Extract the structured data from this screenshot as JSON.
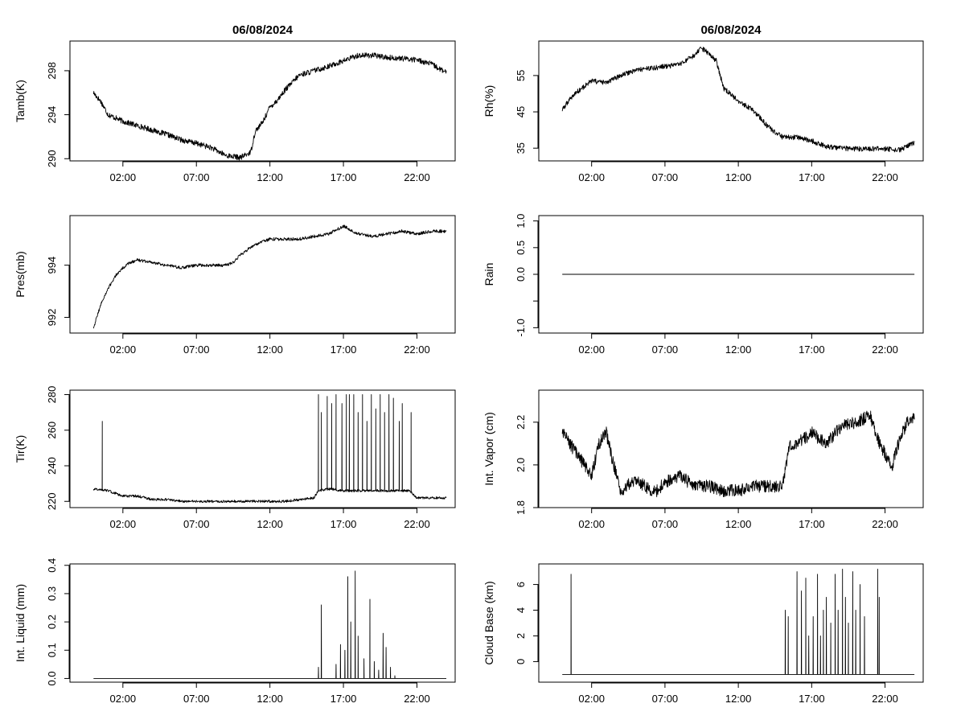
{
  "chart_data": [
    {
      "type": "line",
      "title": "06/08/2024",
      "ylabel": "Tamb(K)",
      "xlabel": "",
      "xlim": [
        -1.6,
        24.6
      ],
      "ylim": [
        289.8,
        300.7
      ],
      "xticks": [
        2,
        7,
        12,
        17,
        22
      ],
      "xtick_labels": [
        "02:00",
        "07:00",
        "12:00",
        "17:00",
        "22:00"
      ],
      "yticks": [
        290,
        294,
        298
      ],
      "ytick_labels": [
        "290",
        "294",
        "298"
      ],
      "noise": 0.25,
      "spikes": [],
      "series": [
        {
          "name": "Tamb",
          "x": [
            0,
            0.5,
            1,
            2,
            3,
            4,
            5,
            6,
            7,
            8,
            9,
            10,
            10.7,
            11,
            11.5,
            12,
            12.5,
            13,
            14,
            15,
            16,
            17,
            18,
            19,
            20,
            21,
            22,
            23,
            24
          ],
          "y": [
            296,
            295.2,
            294,
            293.4,
            293,
            292.6,
            292.2,
            291.7,
            291.4,
            291,
            290.3,
            290.1,
            290.6,
            292.5,
            293.3,
            294.7,
            295.3,
            296.2,
            297.6,
            298,
            298.4,
            298.9,
            299.4,
            299.4,
            299.2,
            299.1,
            299,
            298.6,
            297.8
          ]
        }
      ]
    },
    {
      "type": "line",
      "title": "06/08/2024",
      "ylabel": "Rh(%)",
      "xlabel": "",
      "xlim": [
        -1.6,
        24.6
      ],
      "ylim": [
        31.5,
        64.5
      ],
      "xticks": [
        2,
        7,
        12,
        17,
        22
      ],
      "xtick_labels": [
        "02:00",
        "07:00",
        "12:00",
        "17:00",
        "22:00"
      ],
      "yticks": [
        35,
        45,
        55
      ],
      "ytick_labels": [
        "35",
        "45",
        "55"
      ],
      "noise": 0.7,
      "spikes": [],
      "series": [
        {
          "name": "Rh",
          "x": [
            0,
            0.5,
            1,
            2,
            3,
            4,
            5,
            6,
            7,
            8,
            9,
            9.5,
            10,
            10.5,
            11,
            12,
            13,
            14,
            15,
            16,
            17,
            18,
            19,
            20,
            21,
            22,
            23,
            24
          ],
          "y": [
            45.5,
            48.5,
            50.5,
            53.5,
            53,
            55,
            56.5,
            57,
            57.5,
            58,
            60.5,
            62.5,
            61,
            59,
            51.5,
            48,
            45.5,
            41,
            38,
            38,
            37,
            35.5,
            35,
            34.8,
            34.8,
            34.8,
            34.5,
            36.5
          ]
        }
      ]
    },
    {
      "type": "line",
      "title": "",
      "ylabel": "Pres(mb)",
      "xlabel": "",
      "xlim": [
        -1.6,
        24.6
      ],
      "ylim": [
        991.4,
        995.9
      ],
      "xticks": [
        2,
        7,
        12,
        17,
        22
      ],
      "xtick_labels": [
        "02:00",
        "07:00",
        "12:00",
        "17:00",
        "22:00"
      ],
      "yticks": [
        992,
        994
      ],
      "ytick_labels": [
        "992",
        "994"
      ],
      "noise": 0.06,
      "spikes": [],
      "series": [
        {
          "name": "Pres",
          "x": [
            0,
            0.5,
            1,
            1.5,
            2,
            2.5,
            3,
            4,
            5,
            6,
            7,
            8,
            9,
            9.5,
            10,
            11,
            12,
            13,
            14,
            15,
            16,
            17,
            18,
            19,
            20,
            21,
            22,
            23,
            24
          ],
          "y": [
            991.6,
            992.5,
            993.1,
            993.6,
            993.9,
            994.1,
            994.2,
            994.1,
            994,
            993.9,
            994,
            994,
            994,
            994.1,
            994.4,
            994.8,
            995,
            995,
            995,
            995.1,
            995.2,
            995.5,
            995.2,
            995.1,
            995.2,
            995.3,
            995.2,
            995.3,
            995.3
          ]
        }
      ]
    },
    {
      "type": "line",
      "title": "",
      "ylabel": "Rain",
      "xlabel": "",
      "xlim": [
        -1.6,
        24.6
      ],
      "ylim": [
        -1.1,
        1.1
      ],
      "xticks": [
        2,
        7,
        12,
        17,
        22
      ],
      "xtick_labels": [
        "02:00",
        "07:00",
        "12:00",
        "17:00",
        "22:00"
      ],
      "yticks": [
        -1.0,
        -0.5,
        0.0,
        0.5,
        1.0
      ],
      "ytick_labels": [
        "-1.0",
        "",
        "0.0",
        "0.5",
        "1.0"
      ],
      "noise": 0,
      "spikes": [],
      "series": [
        {
          "name": "Rain",
          "x": [
            0,
            24
          ],
          "y": [
            0,
            0
          ]
        }
      ]
    },
    {
      "type": "line",
      "title": "",
      "ylabel": "Tir(K)",
      "xlabel": "",
      "xlim": [
        -1.6,
        24.6
      ],
      "ylim": [
        216.5,
        282.5
      ],
      "xticks": [
        2,
        7,
        12,
        17,
        22
      ],
      "xtick_labels": [
        "02:00",
        "07:00",
        "12:00",
        "17:00",
        "22:00"
      ],
      "yticks": [
        220,
        240,
        260,
        280
      ],
      "ytick_labels": [
        "220",
        "240",
        "260",
        "280"
      ],
      "noise": 0.7,
      "spikes": [
        [
          0.6,
          265
        ],
        [
          15.3,
          280
        ],
        [
          15.5,
          270
        ],
        [
          15.9,
          279
        ],
        [
          16.2,
          275
        ],
        [
          16.5,
          280
        ],
        [
          16.9,
          275
        ],
        [
          17.2,
          280
        ],
        [
          17.4,
          280
        ],
        [
          17.7,
          280
        ],
        [
          18.0,
          270
        ],
        [
          18.3,
          280
        ],
        [
          18.6,
          265
        ],
        [
          18.9,
          280
        ],
        [
          19.2,
          272
        ],
        [
          19.5,
          280
        ],
        [
          19.8,
          270
        ],
        [
          20.1,
          280
        ],
        [
          20.4,
          278
        ],
        [
          20.8,
          265
        ],
        [
          21.0,
          275
        ],
        [
          21.6,
          270
        ]
      ],
      "series": [
        {
          "name": "Tir",
          "x": [
            0,
            1,
            2,
            3,
            4,
            5,
            6,
            7,
            8,
            9,
            10,
            11,
            12,
            13,
            14,
            15,
            15.3,
            16,
            17,
            18,
            19,
            20,
            21,
            21.5,
            22,
            23,
            24
          ],
          "y": [
            227,
            226,
            223,
            223,
            221,
            221,
            220,
            220,
            220,
            220,
            220,
            220,
            220,
            220,
            221,
            222,
            226,
            227,
            226,
            226,
            226,
            226,
            226,
            226,
            222,
            222,
            222
          ]
        }
      ]
    },
    {
      "type": "line",
      "title": "",
      "ylabel": "Int. Vapor (cm)",
      "xlabel": "",
      "xlim": [
        -1.6,
        24.6
      ],
      "ylim": [
        1.8,
        2.35
      ],
      "xticks": [
        2,
        7,
        12,
        17,
        22
      ],
      "xtick_labels": [
        "02:00",
        "07:00",
        "12:00",
        "17:00",
        "22:00"
      ],
      "yticks": [
        1.8,
        2.0,
        2.2
      ],
      "ytick_labels": [
        "1.8",
        "2.0",
        "2.2"
      ],
      "noise": 0.03,
      "spikes": [],
      "series": [
        {
          "name": "Int. Vapor",
          "x": [
            0,
            0.5,
            1,
            1.5,
            2,
            2.5,
            3,
            3.5,
            4,
            5,
            6,
            6.5,
            7,
            8,
            9,
            10,
            11,
            12,
            13,
            14,
            15,
            15.5,
            16,
            17,
            18,
            19,
            20,
            21,
            21.5,
            22,
            22.5,
            23,
            23.5,
            24
          ],
          "y": [
            2.15,
            2.1,
            2.05,
            2.0,
            1.95,
            2.1,
            2.15,
            2.0,
            1.88,
            1.93,
            1.88,
            1.88,
            1.92,
            1.95,
            1.9,
            1.9,
            1.88,
            1.88,
            1.9,
            1.9,
            1.9,
            2.1,
            2.1,
            2.15,
            2.1,
            2.18,
            2.2,
            2.23,
            2.12,
            2.05,
            2.0,
            2.12,
            2.2,
            2.22
          ]
        }
      ]
    },
    {
      "type": "line",
      "title": "",
      "ylabel": "Int. Liquid (mm)",
      "xlabel": "",
      "xlim": [
        -1.6,
        24.6
      ],
      "ylim": [
        -0.013,
        0.405
      ],
      "xticks": [
        2,
        7,
        12,
        17,
        22
      ],
      "xtick_labels": [
        "02:00",
        "07:00",
        "12:00",
        "17:00",
        "22:00"
      ],
      "yticks": [
        0.0,
        0.1,
        0.2,
        0.3,
        0.4
      ],
      "ytick_labels": [
        "0.0",
        "0.1",
        "0.2",
        "0.3",
        "0.4"
      ],
      "noise": 0,
      "spikes": [
        [
          15.3,
          0.04
        ],
        [
          15.5,
          0.26
        ],
        [
          16.5,
          0.05
        ],
        [
          16.8,
          0.12
        ],
        [
          17.1,
          0.1
        ],
        [
          17.3,
          0.36
        ],
        [
          17.5,
          0.2
        ],
        [
          17.8,
          0.38
        ],
        [
          18.0,
          0.15
        ],
        [
          18.4,
          0.07
        ],
        [
          18.8,
          0.28
        ],
        [
          19.1,
          0.06
        ],
        [
          19.4,
          0.03
        ],
        [
          19.7,
          0.16
        ],
        [
          19.9,
          0.11
        ],
        [
          20.2,
          0.04
        ],
        [
          20.5,
          0.01
        ]
      ],
      "series": [
        {
          "name": "Int. Liquid",
          "x": [
            0,
            24
          ],
          "y": [
            0,
            0
          ]
        }
      ]
    },
    {
      "type": "line",
      "title": "",
      "ylabel": "Cloud Base (km)",
      "xlabel": "",
      "xlim": [
        -1.6,
        24.6
      ],
      "ylim": [
        -1.6,
        7.6
      ],
      "xticks": [
        2,
        7,
        12,
        17,
        22
      ],
      "xtick_labels": [
        "02:00",
        "07:00",
        "12:00",
        "17:00",
        "22:00"
      ],
      "yticks": [
        0,
        2,
        4,
        6
      ],
      "ytick_labels": [
        "0",
        "2",
        "4",
        "6"
      ],
      "noise": 0,
      "spikes": [
        [
          0.6,
          6.8
        ],
        [
          15.2,
          4.0
        ],
        [
          15.4,
          3.5
        ],
        [
          16.0,
          7.0
        ],
        [
          16.3,
          5.5
        ],
        [
          16.6,
          6.5
        ],
        [
          16.8,
          2.0
        ],
        [
          17.1,
          3.5
        ],
        [
          17.4,
          6.8
        ],
        [
          17.6,
          2.0
        ],
        [
          17.8,
          4.0
        ],
        [
          18.0,
          5.0
        ],
        [
          18.3,
          3.0
        ],
        [
          18.6,
          6.8
        ],
        [
          18.8,
          4.0
        ],
        [
          19.1,
          7.2
        ],
        [
          19.3,
          5.0
        ],
        [
          19.5,
          3.0
        ],
        [
          19.8,
          7.0
        ],
        [
          20.0,
          4.0
        ],
        [
          20.3,
          6.0
        ],
        [
          20.6,
          3.5
        ],
        [
          21.5,
          7.2
        ],
        [
          21.6,
          5.0
        ]
      ],
      "series": [
        {
          "name": "Cloud Base",
          "x": [
            0,
            24
          ],
          "y": [
            -1,
            -1
          ]
        }
      ]
    }
  ]
}
